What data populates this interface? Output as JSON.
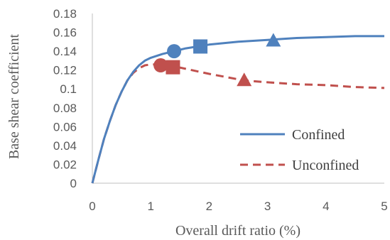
{
  "chart_data": {
    "type": "line",
    "title": "",
    "xlabel": "Overall drift ratio (%)",
    "ylabel": "Base shear coefficient",
    "xlim": [
      0,
      5
    ],
    "ylim": [
      0,
      0.18
    ],
    "x_ticks": [
      0,
      1,
      2,
      3,
      4,
      5
    ],
    "x_tick_labels": [
      "0",
      "1",
      "2",
      "3",
      "4",
      "5"
    ],
    "y_ticks": [
      0,
      0.02,
      0.04,
      0.06,
      0.08,
      0.1,
      0.12,
      0.14,
      0.16,
      0.18
    ],
    "y_tick_labels": [
      "0",
      "0.02",
      "0.04",
      "0.06",
      "0.08",
      "0.1",
      "0.12",
      "0.14",
      "0.16",
      "0.18"
    ],
    "grid": false,
    "legend_position": "bottom-right",
    "series": [
      {
        "name": "Confined",
        "color": "#4f81bd",
        "style": "solid",
        "points": [
          [
            0,
            0
          ],
          [
            0.1,
            0.024
          ],
          [
            0.2,
            0.047
          ],
          [
            0.3,
            0.066
          ],
          [
            0.4,
            0.083
          ],
          [
            0.5,
            0.097
          ],
          [
            0.6,
            0.109
          ],
          [
            0.7,
            0.118
          ],
          [
            0.8,
            0.125
          ],
          [
            0.9,
            0.13
          ],
          [
            1.0,
            0.133
          ],
          [
            1.2,
            0.137
          ],
          [
            1.4,
            0.14
          ],
          [
            1.6,
            0.143
          ],
          [
            1.8,
            0.145
          ],
          [
            2.0,
            0.147
          ],
          [
            2.5,
            0.15
          ],
          [
            3.0,
            0.152
          ],
          [
            3.5,
            0.154
          ],
          [
            4.0,
            0.155
          ],
          [
            4.5,
            0.156
          ],
          [
            5.0,
            0.156
          ]
        ],
        "markers": [
          {
            "shape": "circle",
            "x": 1.4,
            "y": 0.14
          },
          {
            "shape": "square",
            "x": 1.85,
            "y": 0.145
          },
          {
            "shape": "triangle",
            "x": 3.1,
            "y": 0.151
          }
        ]
      },
      {
        "name": "Unconfined",
        "color": "#c0504d",
        "style": "dashed",
        "points": [
          [
            0,
            0
          ],
          [
            0.1,
            0.024
          ],
          [
            0.2,
            0.047
          ],
          [
            0.3,
            0.066
          ],
          [
            0.4,
            0.083
          ],
          [
            0.5,
            0.097
          ],
          [
            0.6,
            0.109
          ],
          [
            0.7,
            0.117
          ],
          [
            0.8,
            0.122
          ],
          [
            0.9,
            0.125
          ],
          [
            1.0,
            0.126
          ],
          [
            1.2,
            0.126
          ],
          [
            1.4,
            0.124
          ],
          [
            1.7,
            0.12
          ],
          [
            2.0,
            0.116
          ],
          [
            2.6,
            0.109
          ],
          [
            3.0,
            0.107
          ],
          [
            3.5,
            0.105
          ],
          [
            4.0,
            0.104
          ],
          [
            4.5,
            0.102
          ],
          [
            5.0,
            0.101
          ]
        ],
        "markers": [
          {
            "shape": "circle",
            "x": 1.17,
            "y": 0.125
          },
          {
            "shape": "square",
            "x": 1.38,
            "y": 0.123
          },
          {
            "shape": "triangle",
            "x": 2.6,
            "y": 0.109
          }
        ]
      }
    ]
  }
}
